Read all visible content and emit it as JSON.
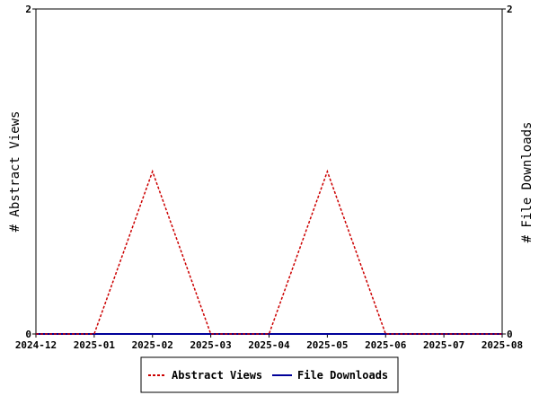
{
  "chart_data": {
    "type": "line",
    "x": [
      "2024-12",
      "2025-01",
      "2025-02",
      "2025-03",
      "2025-04",
      "2025-05",
      "2025-06",
      "2025-07",
      "2025-08"
    ],
    "series": [
      {
        "name": "Abstract Views",
        "axis": "left",
        "color": "#cc0000",
        "dash": true,
        "values": [
          0,
          0,
          1,
          0,
          0,
          1,
          0,
          0,
          0
        ]
      },
      {
        "name": "File Downloads",
        "axis": "right",
        "color": "#000099",
        "dash": false,
        "values": [
          0,
          0,
          0,
          0,
          0,
          0,
          0,
          0,
          0
        ]
      }
    ],
    "ylabel_left": "# Abstract Views",
    "ylabel_right": "# File Downloads",
    "ylim_left": [
      0,
      2
    ],
    "ylim_right": [
      0,
      2
    ],
    "yticks_left": [
      "0",
      "2"
    ],
    "yticks_right": [
      "0",
      "2"
    ],
    "grid": false,
    "legend_position": "bottom-center"
  }
}
